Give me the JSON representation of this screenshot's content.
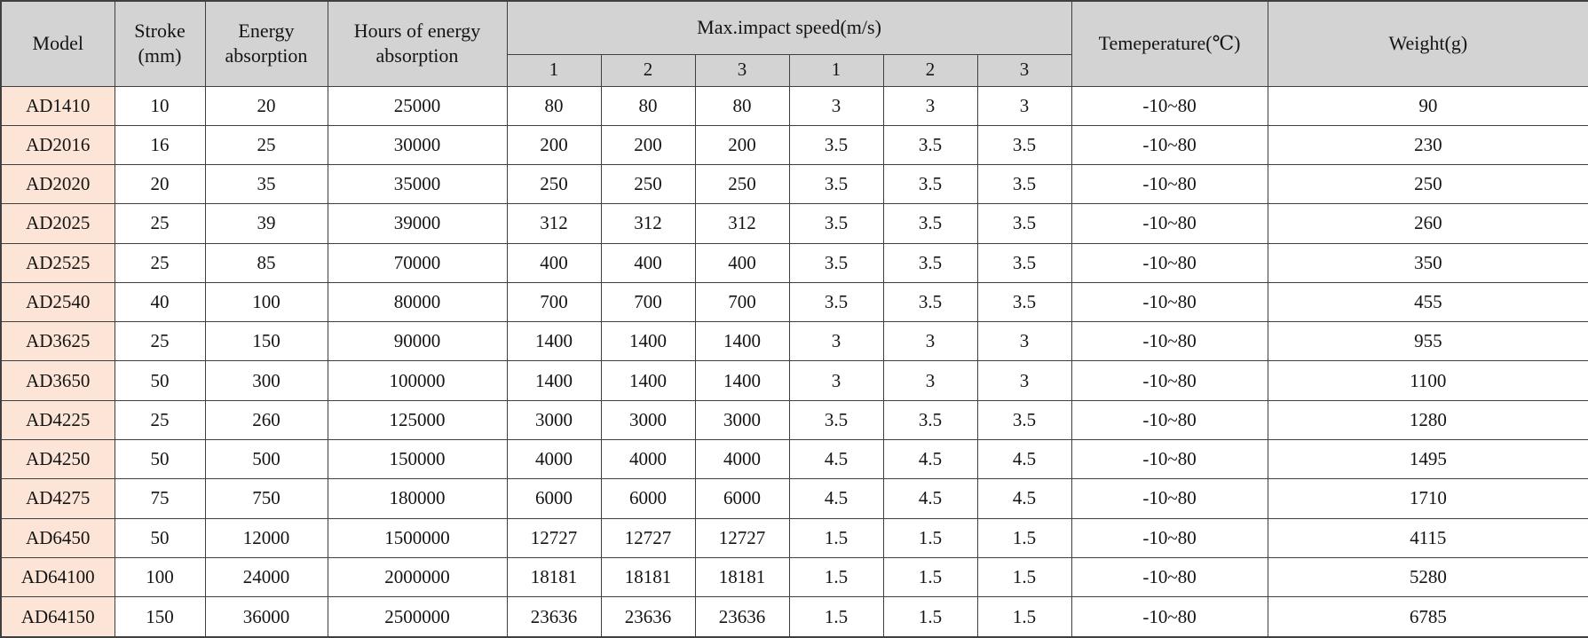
{
  "table": {
    "headers": {
      "model": "Model",
      "stroke_line1": "Stroke",
      "stroke_line2": "(mm)",
      "energy_line1": "Energy",
      "energy_line2": "absorption",
      "hours_line1": "Hours of energy",
      "hours_line2": "absorption",
      "max_impact_speed": "Max.impact speed(m/s)",
      "speed_subcols": [
        "1",
        "2",
        "3",
        "1",
        "2",
        "3"
      ],
      "temperature": "Temeperature(℃)",
      "weight": "Weight(g)"
    },
    "rows": [
      {
        "model": "AD1410",
        "stroke": "10",
        "energy": "20",
        "hours": "25000",
        "speeds": [
          "80",
          "80",
          "80",
          "3",
          "3",
          "3"
        ],
        "temp": "-10~80",
        "weight": "90"
      },
      {
        "model": "AD2016",
        "stroke": "16",
        "energy": "25",
        "hours": "30000",
        "speeds": [
          "200",
          "200",
          "200",
          "3.5",
          "3.5",
          "3.5"
        ],
        "temp": "-10~80",
        "weight": "230"
      },
      {
        "model": "AD2020",
        "stroke": "20",
        "energy": "35",
        "hours": "35000",
        "speeds": [
          "250",
          "250",
          "250",
          "3.5",
          "3.5",
          "3.5"
        ],
        "temp": "-10~80",
        "weight": "250"
      },
      {
        "model": "AD2025",
        "stroke": "25",
        "energy": "39",
        "hours": "39000",
        "speeds": [
          "312",
          "312",
          "312",
          "3.5",
          "3.5",
          "3.5"
        ],
        "temp": "-10~80",
        "weight": "260"
      },
      {
        "model": "AD2525",
        "stroke": "25",
        "energy": "85",
        "hours": "70000",
        "speeds": [
          "400",
          "400",
          "400",
          "3.5",
          "3.5",
          "3.5"
        ],
        "temp": "-10~80",
        "weight": "350"
      },
      {
        "model": "AD2540",
        "stroke": "40",
        "energy": "100",
        "hours": "80000",
        "speeds": [
          "700",
          "700",
          "700",
          "3.5",
          "3.5",
          "3.5"
        ],
        "temp": "-10~80",
        "weight": "455"
      },
      {
        "model": "AD3625",
        "stroke": "25",
        "energy": "150",
        "hours": "90000",
        "speeds": [
          "1400",
          "1400",
          "1400",
          "3",
          "3",
          "3"
        ],
        "temp": "-10~80",
        "weight": "955"
      },
      {
        "model": "AD3650",
        "stroke": "50",
        "energy": "300",
        "hours": "100000",
        "speeds": [
          "1400",
          "1400",
          "1400",
          "3",
          "3",
          "3"
        ],
        "temp": "-10~80",
        "weight": "1100"
      },
      {
        "model": "AD4225",
        "stroke": "25",
        "energy": "260",
        "hours": "125000",
        "speeds": [
          "3000",
          "3000",
          "3000",
          "3.5",
          "3.5",
          "3.5"
        ],
        "temp": "-10~80",
        "weight": "1280"
      },
      {
        "model": "AD4250",
        "stroke": "50",
        "energy": "500",
        "hours": "150000",
        "speeds": [
          "4000",
          "4000",
          "4000",
          "4.5",
          "4.5",
          "4.5"
        ],
        "temp": "-10~80",
        "weight": "1495"
      },
      {
        "model": "AD4275",
        "stroke": "75",
        "energy": "750",
        "hours": "180000",
        "speeds": [
          "6000",
          "6000",
          "6000",
          "4.5",
          "4.5",
          "4.5"
        ],
        "temp": "-10~80",
        "weight": "1710"
      },
      {
        "model": "AD6450",
        "stroke": "50",
        "energy": "12000",
        "hours": "1500000",
        "speeds": [
          "12727",
          "12727",
          "12727",
          "1.5",
          "1.5",
          "1.5"
        ],
        "temp": "-10~80",
        "weight": "4115"
      },
      {
        "model": "AD64100",
        "stroke": "100",
        "energy": "24000",
        "hours": "2000000",
        "speeds": [
          "18181",
          "18181",
          "18181",
          "1.5",
          "1.5",
          "1.5"
        ],
        "temp": "-10~80",
        "weight": "5280"
      },
      {
        "model": "AD64150",
        "stroke": "150",
        "energy": "36000",
        "hours": "2500000",
        "speeds": [
          "23636",
          "23636",
          "23636",
          "1.5",
          "1.5",
          "1.5"
        ],
        "temp": "-10~80",
        "weight": "6785"
      }
    ]
  },
  "colors": {
    "header_bg": "#d3d3d3",
    "model_bg": "#fce4d6",
    "border_color": "#3f3f3f",
    "text_color": "#141414",
    "body_bg": "#ffffff"
  }
}
